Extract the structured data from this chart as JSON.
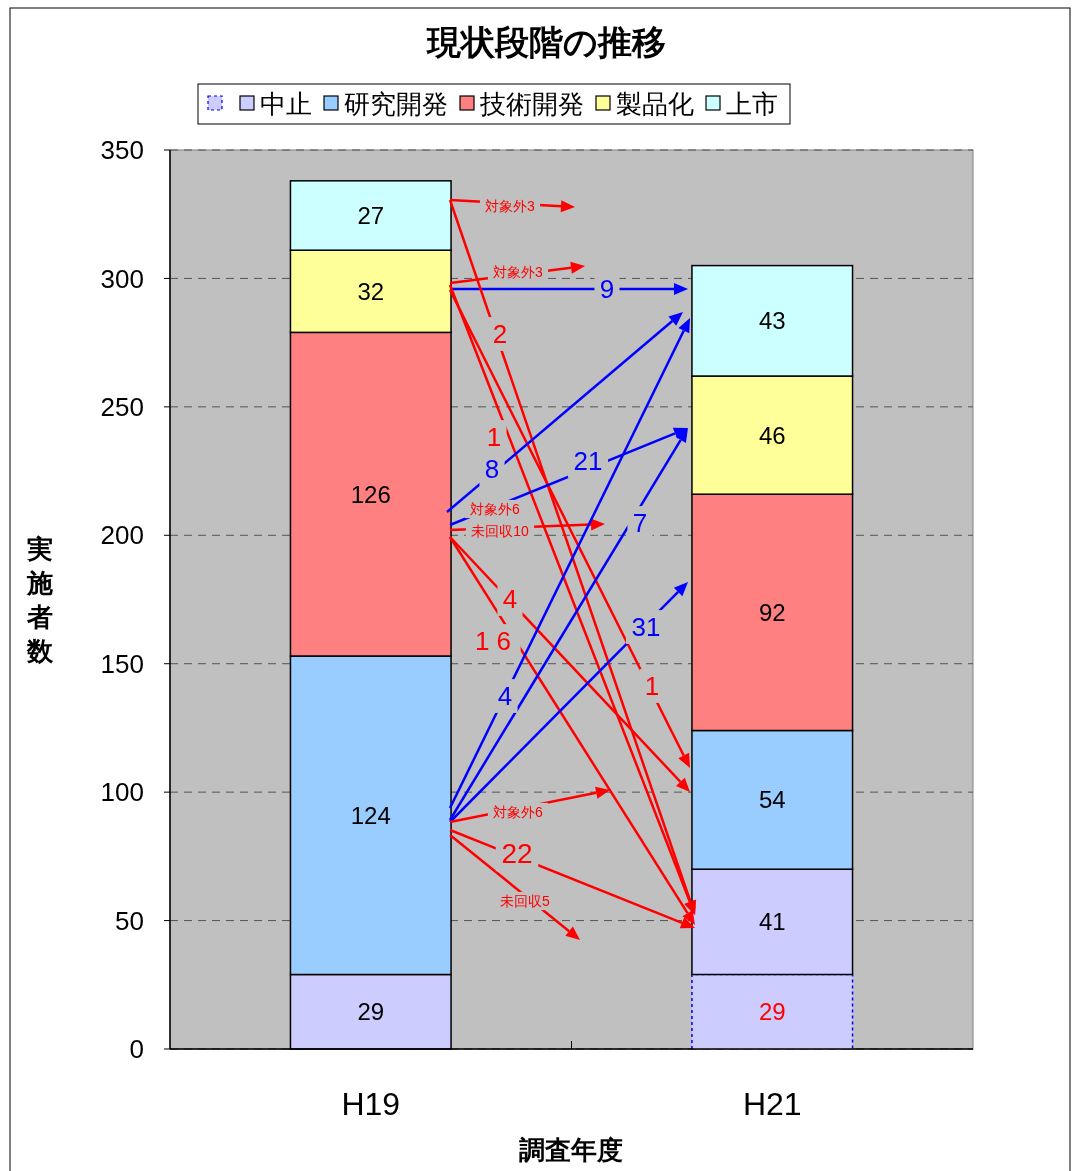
{
  "chart_data": {
    "type": "bar",
    "title": "現状段階の推移",
    "xlabel": "調査年度",
    "ylabel": "実施者数",
    "categories": [
      "H19",
      "H21"
    ],
    "stacked": true,
    "data_labels": true,
    "series": [
      {
        "color": "#ccccff",
        "values": [
          null,
          29
        ],
        "line_style": "dotted"
      },
      {
        "name": "中止",
        "color": "#ccccff",
        "values": [
          29,
          41
        ]
      },
      {
        "name": "研究開発",
        "color": "#99ccff",
        "values": [
          124,
          54
        ]
      },
      {
        "name": "技術開発",
        "color": "#ff8080",
        "values": [
          126,
          92
        ]
      },
      {
        "name": "製品化",
        "color": "#ffff99",
        "values": [
          32,
          46
        ]
      },
      {
        "name": "上市",
        "color": "#ccffff",
        "values": [
          27,
          43
        ]
      }
    ],
    "ylim": [
      0,
      350
    ],
    "yticks": [
      0,
      50,
      100,
      150,
      200,
      250,
      300,
      350
    ],
    "grid": "y",
    "legend": "top",
    "annotations": [
      "対象外3",
      "対象外3",
      {
        "text": "9",
        "y": 296
      },
      "2",
      "1",
      "1",
      "8",
      "21",
      "対象外6",
      "未回収10",
      "4",
      "1 6",
      "4",
      "7",
      "31",
      "対象外6",
      "22",
      "未回収5"
    ]
  }
}
